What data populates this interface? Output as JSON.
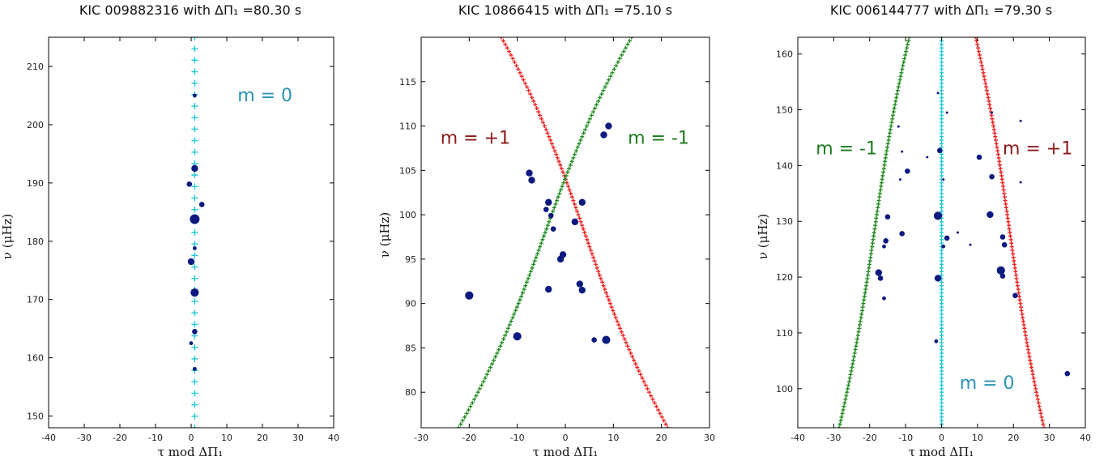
{
  "chart_data": [
    {
      "type": "scatter",
      "title": "KIC 009882316 with ΔΠ₁ =80.30 s",
      "xlabel": "τ mod ΔΠ₁",
      "ylabel": "ν (μHz)",
      "xlim": [
        -40,
        40
      ],
      "ylim": [
        148,
        215
      ],
      "xticks": [
        -40,
        -30,
        -20,
        -10,
        0,
        10,
        20,
        30,
        40
      ],
      "yticks": [
        150,
        160,
        170,
        180,
        190,
        200,
        210
      ],
      "grid": false,
      "annotations": [
        {
          "text": "m = 0",
          "x": 13,
          "y": 204,
          "color": "#2a93b5"
        }
      ],
      "ridges": [
        {
          "m": 0,
          "color": "#20c8d8",
          "marker": "plus",
          "x_at_ymin": 1.0,
          "x_at_ymax": 1.0
        }
      ],
      "points": [
        {
          "x": 1.0,
          "y": 205.0,
          "size": 2
        },
        {
          "x": 1.0,
          "y": 192.5,
          "size": 4
        },
        {
          "x": -0.5,
          "y": 189.8,
          "size": 3
        },
        {
          "x": 3.0,
          "y": 186.3,
          "size": 3
        },
        {
          "x": 1.0,
          "y": 183.8,
          "size": 6
        },
        {
          "x": 1.0,
          "y": 178.8,
          "size": 2
        },
        {
          "x": 0.0,
          "y": 176.5,
          "size": 4
        },
        {
          "x": 1.0,
          "y": 171.2,
          "size": 5
        },
        {
          "x": 1.0,
          "y": 164.5,
          "size": 3
        },
        {
          "x": 0.0,
          "y": 162.5,
          "size": 2
        },
        {
          "x": 1.0,
          "y": 158.1,
          "size": 2
        }
      ]
    },
    {
      "type": "scatter",
      "title": "KIC 10866415 with ΔΠ₁ =75.10 s",
      "xlabel": "τ mod ΔΠ₁",
      "ylabel": "ν (μHz)",
      "xlim": [
        -30,
        30
      ],
      "ylim": [
        76,
        120
      ],
      "xticks": [
        -30,
        -20,
        -10,
        0,
        10,
        20,
        30
      ],
      "yticks": [
        80,
        85,
        90,
        95,
        100,
        105,
        110,
        115
      ],
      "grid": false,
      "annotations": [
        {
          "text": "m = +1",
          "x": -26,
          "y": 108,
          "color": "#8b1a1a"
        },
        {
          "text": "m = -1",
          "x": 13,
          "y": 108,
          "color": "#1e7a1e"
        }
      ],
      "ridges": [
        {
          "m": 1,
          "color": "#ee2222",
          "marker": "plus",
          "x_at_ymin": 21.3,
          "x_at_ymax": -13.3
        },
        {
          "m": -1,
          "color": "#228b22",
          "marker": "plus",
          "x_at_ymin": -22.2,
          "x_at_ymax": 13.8
        }
      ],
      "points": [
        {
          "x": 9.0,
          "y": 110.0,
          "size": 4
        },
        {
          "x": 8.0,
          "y": 109.0,
          "size": 4
        },
        {
          "x": -7.5,
          "y": 104.7,
          "size": 4
        },
        {
          "x": -7.0,
          "y": 103.9,
          "size": 4
        },
        {
          "x": -3.5,
          "y": 101.4,
          "size": 4
        },
        {
          "x": 3.5,
          "y": 101.4,
          "size": 4
        },
        {
          "x": -4.0,
          "y": 100.6,
          "size": 3
        },
        {
          "x": -3.0,
          "y": 99.9,
          "size": 3
        },
        {
          "x": 2.0,
          "y": 99.2,
          "size": 4
        },
        {
          "x": -2.5,
          "y": 98.4,
          "size": 3
        },
        {
          "x": -0.5,
          "y": 95.5,
          "size": 4
        },
        {
          "x": -1.0,
          "y": 95.0,
          "size": 4
        },
        {
          "x": 3.0,
          "y": 92.2,
          "size": 4
        },
        {
          "x": 3.5,
          "y": 91.5,
          "size": 4
        },
        {
          "x": -3.5,
          "y": 91.6,
          "size": 4
        },
        {
          "x": -20.0,
          "y": 90.9,
          "size": 5
        },
        {
          "x": -10.0,
          "y": 86.3,
          "size": 5
        },
        {
          "x": 6.0,
          "y": 85.9,
          "size": 3
        },
        {
          "x": 8.5,
          "y": 85.9,
          "size": 5
        }
      ]
    },
    {
      "type": "scatter",
      "title": "KIC 006144777 with ΔΠ₁ =79.30 s",
      "xlabel": "τ mod ΔΠ₁",
      "ylabel": "ν (μHz)",
      "xlim": [
        -40,
        40
      ],
      "ylim": [
        93,
        163
      ],
      "xticks": [
        -40,
        -30,
        -20,
        -10,
        0,
        10,
        20,
        30,
        40
      ],
      "yticks": [
        100,
        110,
        120,
        130,
        140,
        150,
        160
      ],
      "grid": false,
      "annotations": [
        {
          "text": "m = -1",
          "x": -35,
          "y": 142,
          "color": "#1e7a1e"
        },
        {
          "text": "m = +1",
          "x": 17,
          "y": 142,
          "color": "#8b1a1a"
        },
        {
          "text": "m = 0",
          "x": 5,
          "y": 100,
          "color": "#2a93b5"
        }
      ],
      "ridges": [
        {
          "m": -1,
          "color": "#228b22",
          "marker": "plus",
          "x_at_ymin": -28.5,
          "x_at_ymax": -9.0
        },
        {
          "m": 0,
          "color": "#20c8d8",
          "marker": "plus",
          "x_at_ymin": 0.0,
          "x_at_ymax": 0.0
        },
        {
          "m": 1,
          "color": "#ee2222",
          "marker": "plus",
          "x_at_ymin": 28.5,
          "x_at_ymax": 9.5
        }
      ],
      "points": [
        {
          "x": -1.0,
          "y": 153.0,
          "size": 1
        },
        {
          "x": 1.5,
          "y": 149.5,
          "size": 1
        },
        {
          "x": 14.0,
          "y": 149.5,
          "size": 1
        },
        {
          "x": 22.0,
          "y": 148.0,
          "size": 1
        },
        {
          "x": -12.0,
          "y": 147.0,
          "size": 1
        },
        {
          "x": -11.0,
          "y": 142.5,
          "size": 1
        },
        {
          "x": -0.5,
          "y": 142.7,
          "size": 3
        },
        {
          "x": -4.0,
          "y": 141.5,
          "size": 1
        },
        {
          "x": 10.5,
          "y": 141.5,
          "size": 3
        },
        {
          "x": -9.5,
          "y": 139.0,
          "size": 3
        },
        {
          "x": -11.5,
          "y": 137.5,
          "size": 1
        },
        {
          "x": 0.5,
          "y": 137.5,
          "size": 1
        },
        {
          "x": 14.0,
          "y": 138.0,
          "size": 3
        },
        {
          "x": 22.0,
          "y": 137.0,
          "size": 1
        },
        {
          "x": -1.0,
          "y": 131.0,
          "size": 5
        },
        {
          "x": -15.0,
          "y": 130.8,
          "size": 3
        },
        {
          "x": 13.5,
          "y": 131.2,
          "size": 4
        },
        {
          "x": 4.5,
          "y": 128.0,
          "size": 1
        },
        {
          "x": -11.0,
          "y": 127.8,
          "size": 3
        },
        {
          "x": 8.0,
          "y": 125.8,
          "size": 1
        },
        {
          "x": 1.5,
          "y": 127.0,
          "size": 3
        },
        {
          "x": -15.5,
          "y": 126.5,
          "size": 3
        },
        {
          "x": -16.0,
          "y": 125.5,
          "size": 2
        },
        {
          "x": 0.5,
          "y": 125.5,
          "size": 2
        },
        {
          "x": 17.0,
          "y": 127.2,
          "size": 3
        },
        {
          "x": 17.5,
          "y": 125.8,
          "size": 3
        },
        {
          "x": 16.5,
          "y": 121.2,
          "size": 5
        },
        {
          "x": 17.0,
          "y": 120.2,
          "size": 3
        },
        {
          "x": -17.5,
          "y": 120.8,
          "size": 4
        },
        {
          "x": -17.0,
          "y": 119.8,
          "size": 3
        },
        {
          "x": -1.0,
          "y": 119.8,
          "size": 4
        },
        {
          "x": 20.5,
          "y": 116.7,
          "size": 3
        },
        {
          "x": -16.0,
          "y": 116.2,
          "size": 2
        },
        {
          "x": -1.5,
          "y": 108.5,
          "size": 2
        },
        {
          "x": 35.0,
          "y": 102.7,
          "size": 3
        }
      ]
    }
  ]
}
